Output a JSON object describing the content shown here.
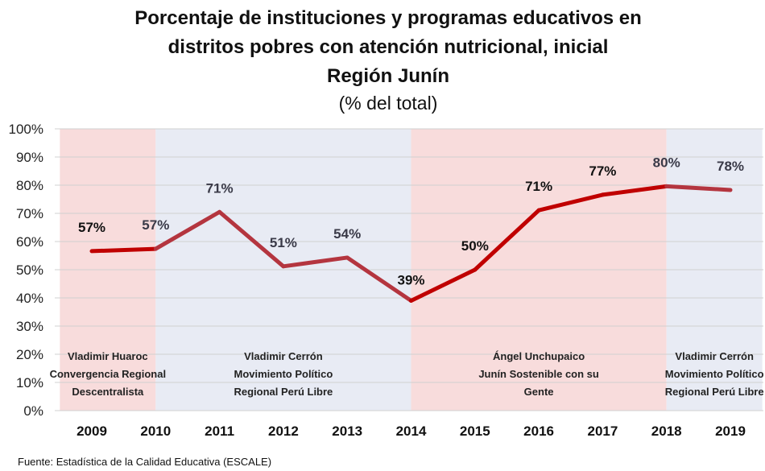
{
  "chart_data": {
    "type": "line",
    "title_lines": [
      "Porcentaje de instituciones y programas educativos en",
      "distritos pobres con atención nutricional, inicial",
      "Región Junín"
    ],
    "subtitle": "(% del total)",
    "categories": [
      "2009",
      "2010",
      "2011",
      "2012",
      "2013",
      "2014",
      "2015",
      "2016",
      "2017",
      "2018",
      "2019"
    ],
    "series": [
      {
        "values": [
          56.6,
          57.4,
          70.5,
          51.2,
          54.3,
          39.0,
          50.0,
          71.1,
          76.6,
          79.6,
          78.3
        ],
        "labels": [
          "57%",
          "57%",
          "71%",
          "51%",
          "54%",
          "39%",
          "50%",
          "71%",
          "77%",
          "80%",
          "78%"
        ]
      }
    ],
    "ylim": [
      0,
      100
    ],
    "yticks": [
      "0%",
      "10%",
      "20%",
      "30%",
      "40%",
      "50%",
      "60%",
      "70%",
      "80%",
      "90%",
      "100%"
    ],
    "grid": true,
    "periods": [
      {
        "start": 2008.5,
        "end": 2010,
        "color": "#f8dcdc",
        "lines": [
          "Vladimir Huaroc",
          "Convergencia Regional",
          "Descentralista"
        ]
      },
      {
        "start": 2010,
        "end": 2014,
        "color": "#e8ebf4",
        "lines": [
          "Vladimir Cerrón",
          "Movimiento Político",
          "Regional Perú Libre"
        ]
      },
      {
        "start": 2014,
        "end": 2018,
        "color": "#f8dcdc",
        "lines": [
          "Ángel Unchupaico",
          "Junín Sostenible con su",
          "Gente"
        ]
      },
      {
        "start": 2018,
        "end": 2019.5,
        "color": "#e8ebf4",
        "lines": [
          "Vladimir Cerrón",
          "Movimiento Político",
          "Regional Perú Libre"
        ]
      }
    ],
    "colors": {
      "red_line": "#c00000",
      "blue_line": "#b4353f",
      "red_label": "#111111",
      "blue_label": "#3a3a48"
    }
  },
  "source": "Fuente: Estadística de la Calidad Educativa (ESCALE)"
}
